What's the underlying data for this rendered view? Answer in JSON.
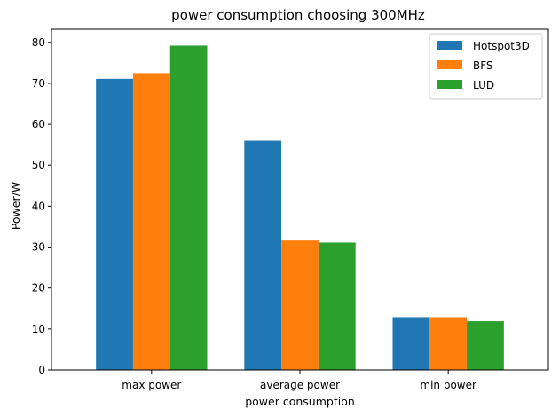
{
  "chart_data": {
    "type": "bar",
    "title": "power consumption choosing 300MHz",
    "xlabel": "power consumption",
    "ylabel": "Power/W",
    "categories": [
      "max power",
      "average power",
      "min power"
    ],
    "series": [
      {
        "name": "Hotspot3D",
        "color": "#1f77b4",
        "values": [
          71.1,
          56.0,
          12.9
        ]
      },
      {
        "name": "BFS",
        "color": "#ff7f0e",
        "values": [
          72.5,
          31.6,
          12.9
        ]
      },
      {
        "name": "LUD",
        "color": "#2ca02c",
        "values": [
          79.2,
          31.1,
          11.9
        ]
      }
    ],
    "ylim": [
      0,
      83.2
    ],
    "yticks": [
      0,
      10,
      20,
      30,
      40,
      50,
      60,
      70,
      80
    ],
    "grid": false,
    "legend_position": "top-right"
  }
}
